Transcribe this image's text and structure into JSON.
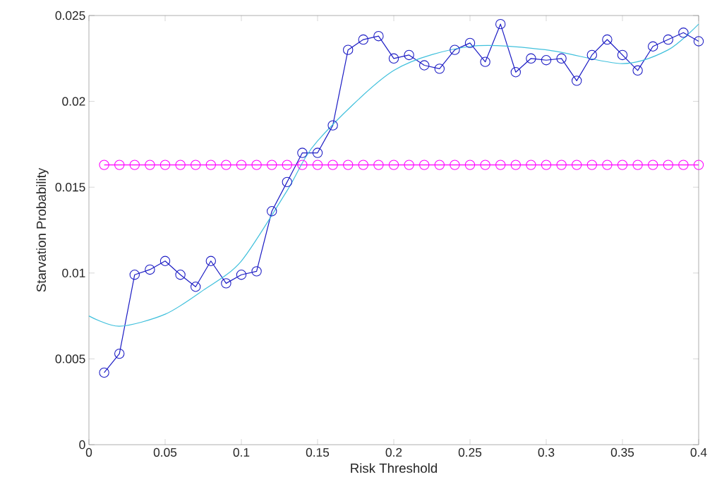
{
  "chart_data": {
    "type": "line",
    "xlabel": "Risk Threshold",
    "ylabel": "Starvation Probability",
    "xlim": [
      0,
      0.4
    ],
    "ylim": [
      0,
      0.025
    ],
    "xticks": [
      0,
      0.05,
      0.1,
      0.15,
      0.2,
      0.25,
      0.3,
      0.35,
      0.4
    ],
    "yticks": [
      0,
      0.005,
      0.01,
      0.015,
      0.02,
      0.025
    ],
    "series": [
      {
        "color": "#1c1cc4",
        "marker": "circle",
        "line_style": "solid",
        "x": [
          0.01,
          0.02,
          0.03,
          0.04,
          0.05,
          0.06,
          0.07,
          0.08,
          0.09,
          0.1,
          0.11,
          0.12,
          0.13,
          0.14,
          0.15,
          0.16,
          0.17,
          0.18,
          0.19,
          0.2,
          0.21,
          0.22,
          0.23,
          0.24,
          0.25,
          0.26,
          0.27,
          0.28,
          0.29,
          0.3,
          0.31,
          0.32,
          0.33,
          0.34,
          0.35,
          0.36,
          0.37,
          0.38,
          0.39,
          0.4
        ],
        "values": [
          0.0042,
          0.0053,
          0.0099,
          0.0102,
          0.0107,
          0.0099,
          0.0092,
          0.0107,
          0.0094,
          0.0099,
          0.0101,
          0.0136,
          0.0153,
          0.017,
          0.017,
          0.0186,
          0.023,
          0.0236,
          0.0238,
          0.0225,
          0.0227,
          0.0221,
          0.0219,
          0.023,
          0.0234,
          0.0223,
          0.0245,
          0.0217,
          0.0225,
          0.0224,
          0.0225,
          0.0212,
          0.0227,
          0.0236,
          0.0227,
          0.0218,
          0.0232,
          0.0236,
          0.024,
          0.0235
        ]
      },
      {
        "color": "#ff00ff",
        "marker": "circle",
        "line_style": "solid",
        "x": [
          0.01,
          0.02,
          0.03,
          0.04,
          0.05,
          0.06,
          0.07,
          0.08,
          0.09,
          0.1,
          0.11,
          0.12,
          0.13,
          0.14,
          0.15,
          0.16,
          0.17,
          0.18,
          0.19,
          0.2,
          0.21,
          0.22,
          0.23,
          0.24,
          0.25,
          0.26,
          0.27,
          0.28,
          0.29,
          0.3,
          0.31,
          0.32,
          0.33,
          0.34,
          0.35,
          0.36,
          0.37,
          0.38,
          0.39,
          0.4
        ],
        "values": [
          0.0163,
          0.0163,
          0.0163,
          0.0163,
          0.0163,
          0.0163,
          0.0163,
          0.0163,
          0.0163,
          0.0163,
          0.0163,
          0.0163,
          0.0163,
          0.0163,
          0.0163,
          0.0163,
          0.0163,
          0.0163,
          0.0163,
          0.0163,
          0.0163,
          0.0163,
          0.0163,
          0.0163,
          0.0163,
          0.0163,
          0.0163,
          0.0163,
          0.0163,
          0.0163,
          0.0163,
          0.0163,
          0.0163,
          0.0163,
          0.0163,
          0.0163,
          0.0163,
          0.0163,
          0.0163,
          0.0163
        ]
      },
      {
        "color": "#40c0dc",
        "marker": "none",
        "line_style": "solid",
        "x": [
          0,
          0.02,
          0.05,
          0.075,
          0.1,
          0.13,
          0.15,
          0.2,
          0.25,
          0.3,
          0.35,
          0.38,
          0.4
        ],
        "values": [
          0.0075,
          0.0069,
          0.0076,
          0.009,
          0.0107,
          0.0148,
          0.0177,
          0.0218,
          0.0232,
          0.023,
          0.0222,
          0.023,
          0.0245
        ]
      }
    ]
  }
}
